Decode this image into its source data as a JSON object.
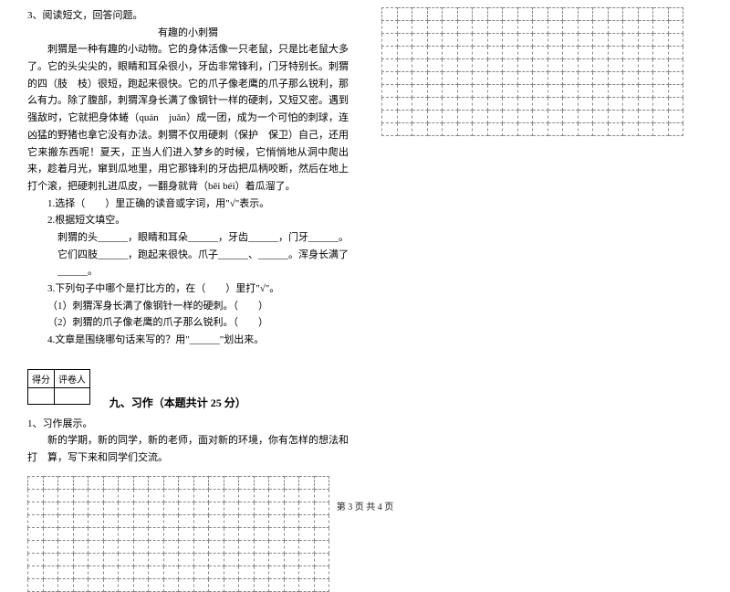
{
  "q3": {
    "num": "3、阅读短文，回答问题。",
    "title": "有趣的小刺猬",
    "p1": "刺猬是一种有趣的小动物。它的身体活像一只老鼠，只是比老鼠大多了。它的头尖尖的，眼睛和耳朵很小，牙齿非常锋利，门牙特别长。刺猬的四（肢　枝）很短，跑起来很快。它的爪子像老鹰的爪子那么锐利，那么有力。除了腹部，刺猬浑身长满了像钢针一样的硬刺，又短又密。遇到强敌时，它就把身体蜷（quán　juǎn）成一团，成为一个可怕的刺球，连凶猛的野猪也拿它没有办法。刺猬不仅用硬刺（保护　保卫）自己，还用它来搬东西呢！夏天，正当人们进入梦乡的时候，它悄悄地从洞中爬出来，趁着月光，窜到瓜地里，用它那锋利的牙齿把瓜柄咬断，然后在地上打个滚，把硬刺扎进瓜皮，一翻身就背（bēi béi）着瓜溜了。",
    "s1": "1.选择（　　）里正确的读音或字词，用\"√\"表示。",
    "s2": "2.根据短文填空。",
    "s2a": "刺猬的头______，眼睛和耳朵______，牙齿______，门牙______。它们四肢______，跑起来很快。爪子______、______。浑身长满了______。",
    "s3": "3.下列句子中哪个是打比方的，在（　　）里打\"√\"。",
    "s3a": "（1）刺猬浑身长满了像钢针一样的硬刺。（　　）",
    "s3b": "（2）刺猬的爪子像老鹰的爪子那么锐利。（　　）",
    "s4": "4.文章是围绕哪句话来写的？用\"______\"划出来。"
  },
  "score": {
    "h1": "得分",
    "h2": "评卷人"
  },
  "section9": "九、习作（本题共计 25 分）",
  "q1": {
    "num": "1、习作展示。",
    "body": "新的学期，新的同学，新的老师，面对新的环境，你有怎样的想法和打　算，写下来和同学们交流。"
  },
  "footer": "第 3 页 共 4 页",
  "gridLeft": {
    "rows": 9,
    "cols": 20
  },
  "gridRight": {
    "rows": 10,
    "cols": 20
  }
}
